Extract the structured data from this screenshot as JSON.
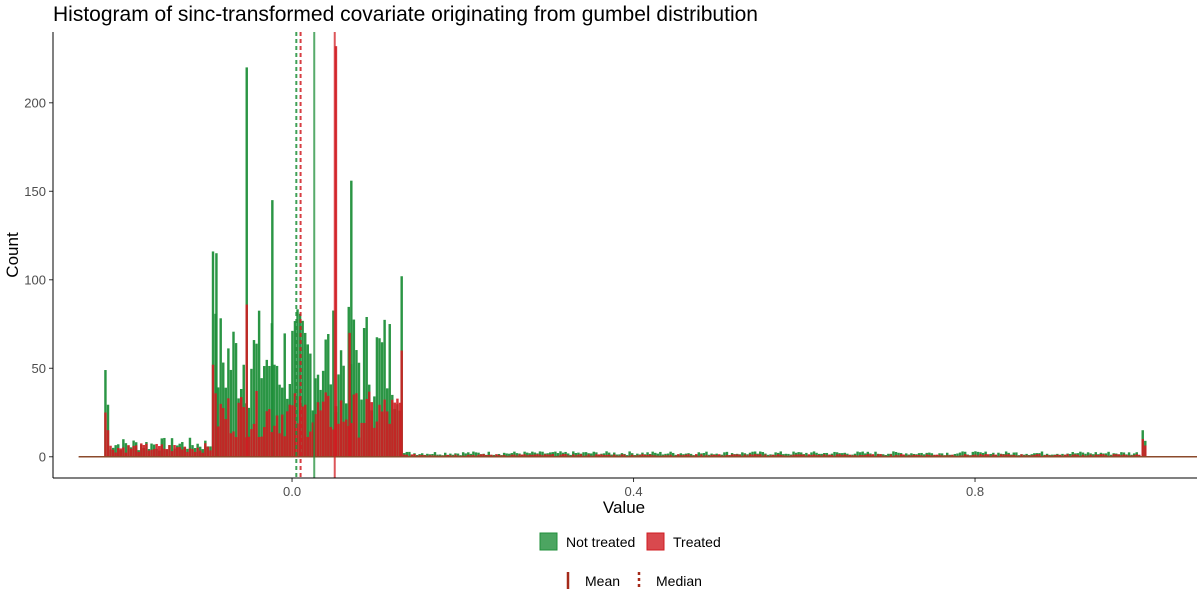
{
  "chart_data": {
    "type": "bar",
    "title": "Histogram of sinc-transformed covariate originating from gumbel distribution",
    "xlabel": "Value",
    "ylabel": "Count",
    "xlim": [
      -0.28,
      1.06
    ],
    "ylim": [
      -12,
      240
    ],
    "x_ticks": [
      0.0,
      0.4,
      0.8
    ],
    "x_tick_labels": [
      "0.0",
      "0.4",
      "0.8"
    ],
    "y_ticks": [
      0,
      50,
      100,
      150,
      200
    ],
    "y_tick_labels": [
      "0",
      "50",
      "100",
      "150",
      "200"
    ],
    "grid": false,
    "legend_position": "bottom",
    "legend": {
      "fill_items": [
        "Not treated",
        "Treated"
      ],
      "line_items": [
        {
          "label": "Mean",
          "style": "solid"
        },
        {
          "label": "Median",
          "style": "dashed"
        }
      ]
    },
    "colors": {
      "Not treated": "#1f8f3a",
      "Treated": "#d01c22",
      "mean_median_legend": "#a52a1a",
      "baseline": "#8b4a2b"
    },
    "series": [
      {
        "name": "Not treated",
        "segments": [
          {
            "from": -0.22,
            "to": -0.095,
            "start_peak": 49,
            "level": 7
          },
          {
            "from": -0.094,
            "to": 0.128,
            "start_peak": 116,
            "level": 55
          },
          {
            "from": 0.13,
            "to": 0.995,
            "start_peak": 0,
            "level": 2
          },
          {
            "from": 0.995,
            "to": 1.0,
            "start_peak": 15,
            "level": 8
          }
        ],
        "spikes": [
          [
            -0.0545,
            220
          ],
          [
            -0.0245,
            145
          ],
          [
            0.068,
            156
          ],
          [
            0.127,
            102
          ],
          [
            -0.09,
            115
          ]
        ],
        "mean": 0.026,
        "median": 0.005
      },
      {
        "name": "Treated",
        "segments": [
          {
            "from": -0.22,
            "to": -0.095,
            "start_peak": 25,
            "level": 5
          },
          {
            "from": -0.094,
            "to": 0.128,
            "start_peak": 52,
            "level": 24
          },
          {
            "from": 0.13,
            "to": 0.995,
            "start_peak": 0,
            "level": 1
          },
          {
            "from": 0.995,
            "to": 1.0,
            "start_peak": 10,
            "level": 5
          }
        ],
        "spikes": [
          [
            0.05,
            232
          ],
          [
            -0.0545,
            86
          ],
          [
            0.066,
            70
          ],
          [
            0.127,
            60
          ]
        ],
        "mean": 0.05,
        "median": 0.01
      }
    ]
  }
}
